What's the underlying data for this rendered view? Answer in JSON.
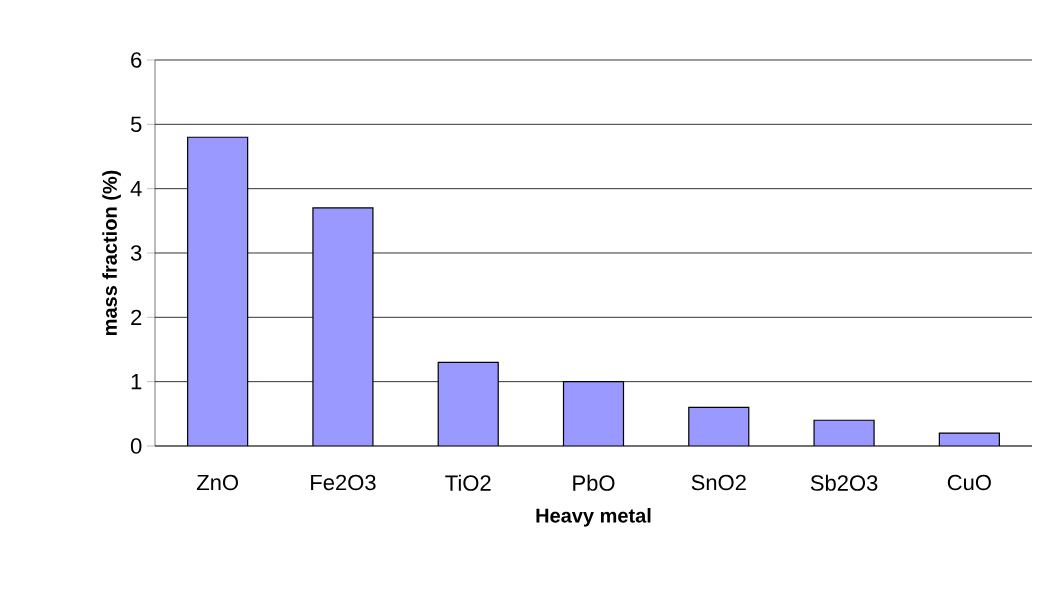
{
  "chart_data": {
    "type": "bar",
    "xlabel": "Heavy metal",
    "ylabel": "mass fraction (%)",
    "categories": [
      "ZnO",
      "Fe2O3",
      "TiO2",
      "PbO",
      "SnO2",
      "Sb2O3",
      "CuO"
    ],
    "values": [
      4.8,
      3.7,
      1.3,
      1.0,
      0.6,
      0.4,
      0.2
    ],
    "color": "#9999ff",
    "ylim": [
      0,
      6
    ],
    "yticks": [
      0,
      1,
      2,
      3,
      4,
      5,
      6
    ],
    "grid": "y"
  }
}
